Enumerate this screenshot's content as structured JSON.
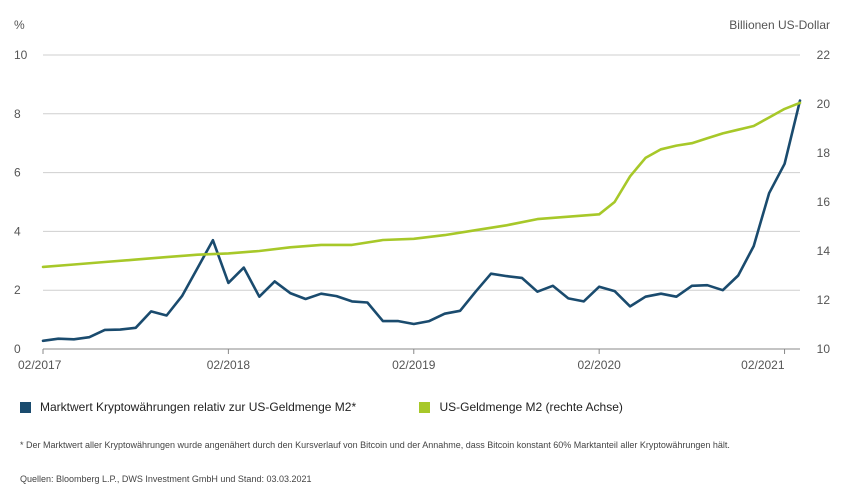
{
  "chart_data": {
    "type": "line",
    "left_unit": "%",
    "right_unit": "Billionen US-Dollar",
    "left_ticks": [
      "0",
      "2",
      "4",
      "6",
      "8",
      "10"
    ],
    "right_ticks": [
      "10",
      "12",
      "14",
      "16",
      "18",
      "20",
      "22"
    ],
    "x_ticks": [
      "02/2017",
      "02/2018",
      "02/2019",
      "02/2020",
      "02/2021"
    ],
    "left_range": [
      0,
      10
    ],
    "right_range": [
      10,
      22
    ],
    "x_range": [
      "2017-02",
      "2021-03"
    ],
    "grid": "horizontal",
    "legend_position": "bottom",
    "series": [
      {
        "name": "Marktwert Kryptowährungen relativ zur US-Geldmenge M2*",
        "axis": "left",
        "color": "#1a4b6e",
        "points": [
          [
            "2017-02",
            0.28
          ],
          [
            "2017-03",
            0.35
          ],
          [
            "2017-04",
            0.33
          ],
          [
            "2017-05",
            0.4
          ],
          [
            "2017-06",
            0.65
          ],
          [
            "2017-07",
            0.66
          ],
          [
            "2017-08",
            0.72
          ],
          [
            "2017-09",
            1.28
          ],
          [
            "2017-10",
            1.14
          ],
          [
            "2017-11",
            1.8
          ],
          [
            "2017-12",
            2.75
          ],
          [
            "2018-01",
            3.7
          ],
          [
            "2018-02",
            2.25
          ],
          [
            "2018-03",
            2.77
          ],
          [
            "2018-04",
            1.78
          ],
          [
            "2018-05",
            2.3
          ],
          [
            "2018-06",
            1.9
          ],
          [
            "2018-07",
            1.7
          ],
          [
            "2018-08",
            1.88
          ],
          [
            "2018-09",
            1.8
          ],
          [
            "2018-10",
            1.62
          ],
          [
            "2018-11",
            1.58
          ],
          [
            "2018-12",
            0.95
          ],
          [
            "2019-01",
            0.95
          ],
          [
            "2019-02",
            0.85
          ],
          [
            "2019-03",
            0.95
          ],
          [
            "2019-04",
            1.2
          ],
          [
            "2019-05",
            1.3
          ],
          [
            "2019-06",
            1.95
          ],
          [
            "2019-07",
            2.56
          ],
          [
            "2019-08",
            2.48
          ],
          [
            "2019-09",
            2.42
          ],
          [
            "2019-10",
            1.95
          ],
          [
            "2019-11",
            2.15
          ],
          [
            "2019-12",
            1.72
          ],
          [
            "2020-01",
            1.62
          ],
          [
            "2020-02",
            2.12
          ],
          [
            "2020-03",
            1.97
          ],
          [
            "2020-04",
            1.45
          ],
          [
            "2020-05",
            1.78
          ],
          [
            "2020-06",
            1.88
          ],
          [
            "2020-07",
            1.78
          ],
          [
            "2020-08",
            2.15
          ],
          [
            "2020-09",
            2.17
          ],
          [
            "2020-10",
            2.0
          ],
          [
            "2020-11",
            2.5
          ],
          [
            "2020-12",
            3.5
          ],
          [
            "2021-01",
            5.3
          ],
          [
            "2021-02",
            6.3
          ],
          [
            "2021-03",
            8.45
          ]
        ]
      },
      {
        "name": "US-Geldmenge M2 (rechte Achse)",
        "axis": "right",
        "color": "#a7c829",
        "points": [
          [
            "2017-02",
            13.35
          ],
          [
            "2017-04",
            13.45
          ],
          [
            "2017-06",
            13.55
          ],
          [
            "2017-08",
            13.65
          ],
          [
            "2017-10",
            13.75
          ],
          [
            "2017-12",
            13.85
          ],
          [
            "2018-02",
            13.9
          ],
          [
            "2018-04",
            14.0
          ],
          [
            "2018-06",
            14.15
          ],
          [
            "2018-08",
            14.25
          ],
          [
            "2018-10",
            14.25
          ],
          [
            "2018-12",
            14.45
          ],
          [
            "2019-02",
            14.5
          ],
          [
            "2019-04",
            14.65
          ],
          [
            "2019-06",
            14.85
          ],
          [
            "2019-08",
            15.05
          ],
          [
            "2019-10",
            15.3
          ],
          [
            "2019-12",
            15.4
          ],
          [
            "2020-02",
            15.5
          ],
          [
            "2020-03",
            16.0
          ],
          [
            "2020-04",
            17.05
          ],
          [
            "2020-05",
            17.8
          ],
          [
            "2020-06",
            18.15
          ],
          [
            "2020-07",
            18.3
          ],
          [
            "2020-08",
            18.4
          ],
          [
            "2020-09",
            18.6
          ],
          [
            "2020-10",
            18.8
          ],
          [
            "2020-11",
            18.95
          ],
          [
            "2020-12",
            19.1
          ],
          [
            "2021-01",
            19.45
          ],
          [
            "2021-02",
            19.8
          ],
          [
            "2021-03",
            20.05
          ]
        ]
      }
    ]
  },
  "legend": {
    "item1": "Marktwert Kryptowährungen relativ zur US-Geldmenge M2*",
    "item2": "US-Geldmenge M2 (rechte Achse)"
  },
  "footnote": "* Der Marktwert aller Kryptowährungen wurde angenähert durch den Kursverlauf von Bitcoin und der Annahme, dass Bitcoin konstant 60% Marktanteil aller Kryptowährungen hält.",
  "source": "Quellen: Bloomberg L.P., DWS Investment GmbH und Stand: 03.03.2021"
}
